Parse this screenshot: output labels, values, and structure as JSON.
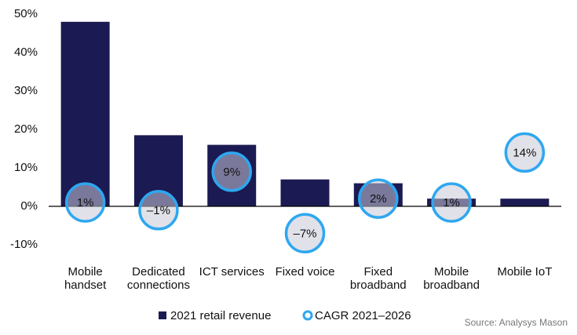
{
  "chart_data": {
    "type": "bar-bubble",
    "categories": [
      "Mobile handset",
      "Dedicated connections",
      "ICT services",
      "Fixed voice",
      "Fixed broadband",
      "Mobile broadband",
      "Mobile IoT"
    ],
    "series": [
      {
        "name": "2021 retail revenue",
        "color": "#1b1a52",
        "values": [
          48,
          18.5,
          16,
          7,
          6,
          2,
          2
        ]
      },
      {
        "name": "CAGR 2021–2026",
        "color": "#2ea7f0",
        "values": [
          1,
          -1,
          9,
          -7,
          2,
          1,
          14
        ],
        "value_labels": [
          "1%",
          "–1%",
          "9%",
          "–7%",
          "2%",
          "1%",
          "14%"
        ]
      }
    ],
    "negative_label_color": "#e8262a",
    "ylim": [
      -10,
      50
    ],
    "yticks": [
      {
        "value": -10,
        "label": "-10%"
      },
      {
        "value": 0,
        "label": "0%"
      },
      {
        "value": 10,
        "label": "10%"
      },
      {
        "value": 20,
        "label": "20%"
      },
      {
        "value": 30,
        "label": "30%"
      },
      {
        "value": 40,
        "label": "40%"
      },
      {
        "value": 50,
        "label": "50%"
      }
    ],
    "grid": false,
    "source": "Source: Analysys Mason"
  }
}
